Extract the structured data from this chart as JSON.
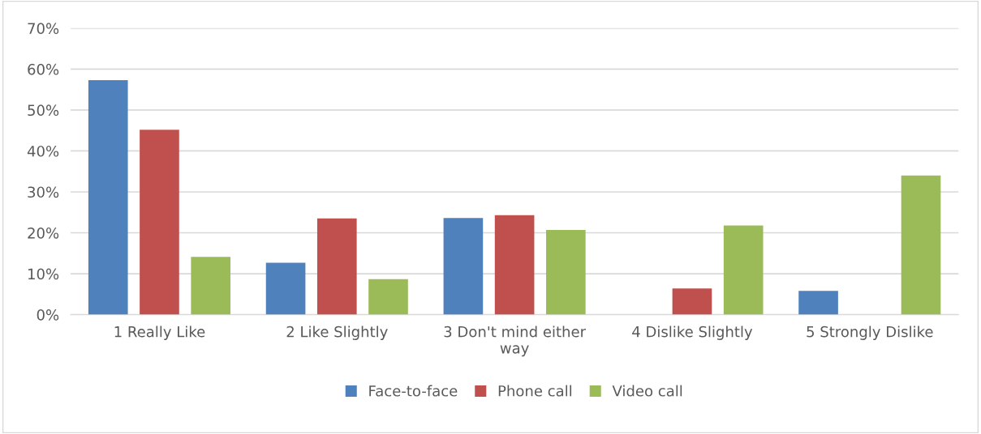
{
  "chart_data": {
    "type": "bar",
    "categories": [
      "1 Really Like",
      "2 Like Slightly",
      "3 Don't mind either way",
      "4 Dislike Slightly",
      "5 Strongly Dislike"
    ],
    "series": [
      {
        "name": "Face-to-face",
        "color": "#4f81bd",
        "values": [
          57.3,
          12.7,
          23.6,
          0,
          5.8
        ]
      },
      {
        "name": "Phone call",
        "color": "#c0504d",
        "values": [
          45.2,
          23.5,
          24.3,
          6.4,
          0
        ]
      },
      {
        "name": "Video call",
        "color": "#9bbb59",
        "values": [
          14.1,
          8.7,
          20.7,
          21.8,
          34.0
        ]
      }
    ],
    "ylim": [
      0,
      70
    ],
    "yticks": [
      {
        "value": 0,
        "label": "0%"
      },
      {
        "value": 10,
        "label": "10%"
      },
      {
        "value": 20,
        "label": "20%"
      },
      {
        "value": 30,
        "label": "30%"
      },
      {
        "value": 40,
        "label": "40%"
      },
      {
        "value": 50,
        "label": "50%"
      },
      {
        "value": 60,
        "label": "60%"
      },
      {
        "value": 70,
        "label": "70%"
      }
    ],
    "grid": "y",
    "legend": "bottom"
  }
}
